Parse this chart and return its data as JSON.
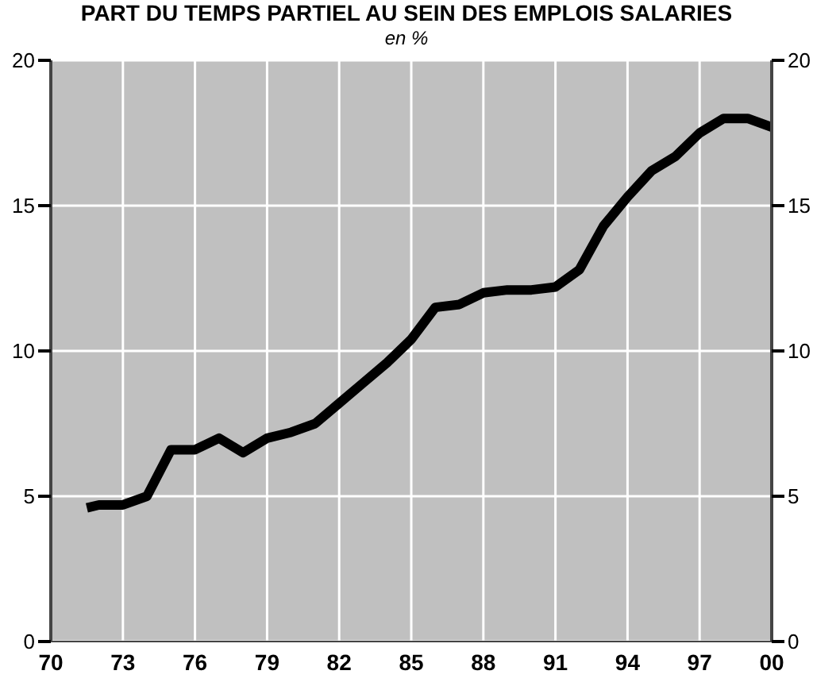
{
  "chart_data": {
    "type": "line",
    "title": "PART DU TEMPS PARTIEL AU SEIN DES EMPLOIS SALARIES",
    "subtitle": "en %",
    "x": [
      1971.5,
      1972,
      1973,
      1974,
      1975,
      1976,
      1977,
      1978,
      1979,
      1980,
      1981,
      1982,
      1983,
      1984,
      1985,
      1986,
      1987,
      1988,
      1989,
      1990,
      1991,
      1992,
      1993,
      1994,
      1995,
      1996,
      1997,
      1998,
      1999,
      2000
    ],
    "series": [
      {
        "color": "#000000",
        "values": [
          4.6,
          4.7,
          4.7,
          5.0,
          6.6,
          6.6,
          7.0,
          6.5,
          7.0,
          7.2,
          7.5,
          8.2,
          8.9,
          9.6,
          10.4,
          11.5,
          11.6,
          12.0,
          12.1,
          12.1,
          12.2,
          12.8,
          14.3,
          15.3,
          16.2,
          16.7,
          17.5,
          18.0,
          18.0,
          17.7
        ]
      }
    ],
    "xlim": [
      1970,
      2000
    ],
    "xticks": [
      {
        "value": 1970,
        "label": "70"
      },
      {
        "value": 1973,
        "label": "73"
      },
      {
        "value": 1976,
        "label": "76"
      },
      {
        "value": 1979,
        "label": "79"
      },
      {
        "value": 1982,
        "label": "82"
      },
      {
        "value": 1985,
        "label": "85"
      },
      {
        "value": 1988,
        "label": "88"
      },
      {
        "value": 1991,
        "label": "91"
      },
      {
        "value": 1994,
        "label": "94"
      },
      {
        "value": 1997,
        "label": "97"
      },
      {
        "value": 2000,
        "label": "00"
      }
    ],
    "ylim": [
      0,
      20
    ],
    "yticks": [
      0,
      5,
      10,
      15,
      20
    ],
    "y2lim": [
      0,
      20
    ],
    "y2ticks": [
      0,
      5,
      10,
      15,
      20
    ],
    "grid": true,
    "legend": false,
    "marker": "none",
    "line_style": "solid"
  }
}
